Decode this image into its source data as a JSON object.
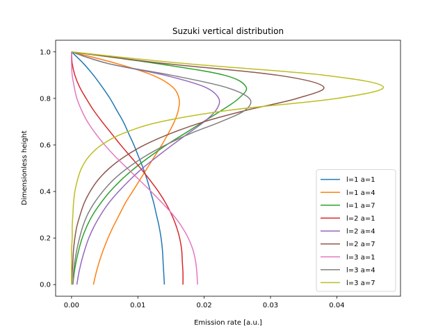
{
  "chart_data": {
    "type": "line",
    "title": "Suzuki vertical distribution",
    "xlabel": "Emission rate [a.u.]",
    "ylabel": "Dimensionless height",
    "xlim": [
      -0.0024,
      0.0496
    ],
    "ylim": [
      -0.05,
      1.05
    ],
    "xticks": [
      0.0,
      0.01,
      0.02,
      0.03,
      0.04
    ],
    "xtick_labels": [
      "0.00",
      "0.01",
      "0.02",
      "0.03",
      "0.04"
    ],
    "yticks": [
      0.0,
      0.2,
      0.4,
      0.6,
      0.8,
      1.0
    ],
    "ytick_labels": [
      "0.0",
      "0.2",
      "0.4",
      "0.6",
      "0.8",
      "1.0"
    ],
    "grid": false,
    "legend_position": "lower-right",
    "y": [
      0.0,
      0.05,
      0.1,
      0.15,
      0.2,
      0.25,
      0.3,
      0.35,
      0.4,
      0.45,
      0.5,
      0.55,
      0.6,
      0.65,
      0.7,
      0.75,
      0.8,
      0.85,
      0.9,
      0.95,
      1.0
    ],
    "series": [
      {
        "name": "l=1 a=1",
        "color": "#1f77b4",
        "values": [
          0.014,
          0.0139,
          0.0138,
          0.0137,
          0.0135,
          0.0132,
          0.0128,
          0.0124,
          0.0119,
          0.0114,
          0.0108,
          0.0101,
          0.0094,
          0.0086,
          0.0078,
          0.0068,
          0.0058,
          0.0046,
          0.0033,
          0.0018,
          0.0
        ]
      },
      {
        "name": "l=1 a=4",
        "color": "#ff7f0e",
        "values": [
          0.0033,
          0.0037,
          0.0042,
          0.0048,
          0.0055,
          0.0063,
          0.0072,
          0.0081,
          0.0092,
          0.0103,
          0.0114,
          0.0125,
          0.0136,
          0.0146,
          0.0155,
          0.0161,
          0.0162,
          0.0152,
          0.0122,
          0.0068,
          0.0
        ]
      },
      {
        "name": "l=1 a=7",
        "color": "#2ca02c",
        "values": [
          0.0002,
          0.0004,
          0.0007,
          0.0011,
          0.0016,
          0.0023,
          0.0032,
          0.0044,
          0.0058,
          0.0075,
          0.0095,
          0.0118,
          0.0143,
          0.0171,
          0.0199,
          0.0227,
          0.0252,
          0.0263,
          0.023,
          0.0128,
          0.0
        ]
      },
      {
        "name": "l=2 a=1",
        "color": "#d62728",
        "values": [
          0.0168,
          0.0168,
          0.0167,
          0.0166,
          0.0163,
          0.0158,
          0.0151,
          0.0142,
          0.0131,
          0.0118,
          0.0104,
          0.0089,
          0.0074,
          0.006,
          0.0046,
          0.0033,
          0.0022,
          0.0012,
          0.0005,
          0.0001,
          0.0
        ]
      },
      {
        "name": "l=2 a=4",
        "color": "#9467bd",
        "values": [
          0.0008,
          0.0011,
          0.0015,
          0.002,
          0.0026,
          0.0034,
          0.0044,
          0.0056,
          0.0071,
          0.0088,
          0.0107,
          0.0129,
          0.0152,
          0.0176,
          0.02,
          0.0218,
          0.0222,
          0.02,
          0.014,
          0.0055,
          0.0
        ]
      },
      {
        "name": "l=2 a=7",
        "color": "#8c564b",
        "values": [
          0.0,
          0.0001,
          0.0002,
          0.0003,
          0.0005,
          0.0008,
          0.0013,
          0.0019,
          0.0028,
          0.004,
          0.0057,
          0.008,
          0.011,
          0.015,
          0.02,
          0.0265,
          0.034,
          0.038,
          0.031,
          0.014,
          0.0
        ]
      },
      {
        "name": "l=3 a=1",
        "color": "#e377c2",
        "values": [
          0.019,
          0.0189,
          0.0187,
          0.0183,
          0.0176,
          0.0166,
          0.0153,
          0.0137,
          0.012,
          0.0102,
          0.0084,
          0.0066,
          0.005,
          0.0036,
          0.0024,
          0.0015,
          0.0008,
          0.0004,
          0.0001,
          0.0,
          0.0
        ]
      },
      {
        "name": "l=3 a=4",
        "color": "#7f7f7f",
        "values": [
          0.0002,
          0.0003,
          0.0005,
          0.0008,
          0.0012,
          0.0017,
          0.0024,
          0.0034,
          0.0047,
          0.0063,
          0.0084,
          0.011,
          0.0142,
          0.018,
          0.0225,
          0.0262,
          0.0268,
          0.023,
          0.015,
          0.0055,
          0.0
        ]
      },
      {
        "name": "l=3 a=7",
        "color": "#bcbd22",
        "values": [
          0.0,
          0.0,
          0.0,
          0.0,
          0.0001,
          0.0001,
          0.0002,
          0.0003,
          0.0005,
          0.0009,
          0.0015,
          0.0026,
          0.0045,
          0.0078,
          0.0135,
          0.024,
          0.04,
          0.047,
          0.038,
          0.017,
          0.0
        ]
      }
    ]
  }
}
